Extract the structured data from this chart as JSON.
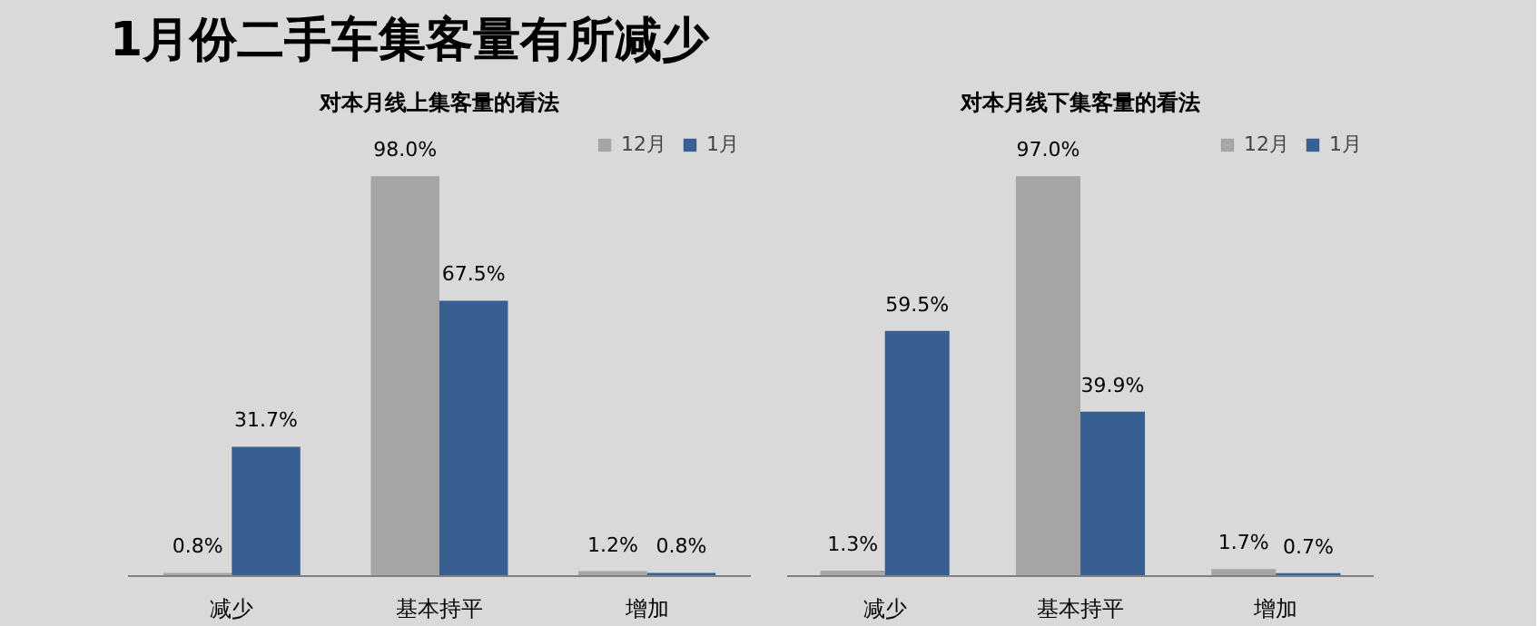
{
  "chart_data": [
    {
      "type": "bar",
      "title": "对本月线上集客量的看法",
      "annotations": [
        "1月份二手车集客量有所减少"
      ],
      "categories": [
        "减少",
        "基本持平",
        "增加"
      ],
      "series": [
        {
          "name": "12月",
          "color": "#a5a5a5",
          "values": [
            0.8,
            98.0,
            1.2
          ],
          "value_labels": [
            "0.8%",
            "98.0%",
            "1.2%"
          ]
        },
        {
          "name": "1月",
          "color": "#375f92",
          "values": [
            31.7,
            67.5,
            0.8
          ],
          "value_labels": [
            "31.7%",
            "67.5%",
            "0.8%"
          ]
        }
      ],
      "legend": "top right",
      "grid": false,
      "tick_labels": "x"
    },
    {
      "type": "bar",
      "title": "对本月线下集客量的看法",
      "categories": [
        "减少",
        "基本持平",
        "增加"
      ],
      "series": [
        {
          "name": "12月",
          "color": "#a5a5a5",
          "values": [
            1.3,
            97.0,
            1.7
          ],
          "value_labels": [
            "1.3%",
            "97.0%",
            "1.7%"
          ]
        },
        {
          "name": "1月",
          "color": "#375f92",
          "values": [
            59.5,
            39.9,
            0.7
          ],
          "value_labels": [
            "59.5%",
            "39.9%",
            "0.7%"
          ]
        }
      ],
      "legend": "top right",
      "grid": false,
      "tick_labels": "x"
    }
  ]
}
